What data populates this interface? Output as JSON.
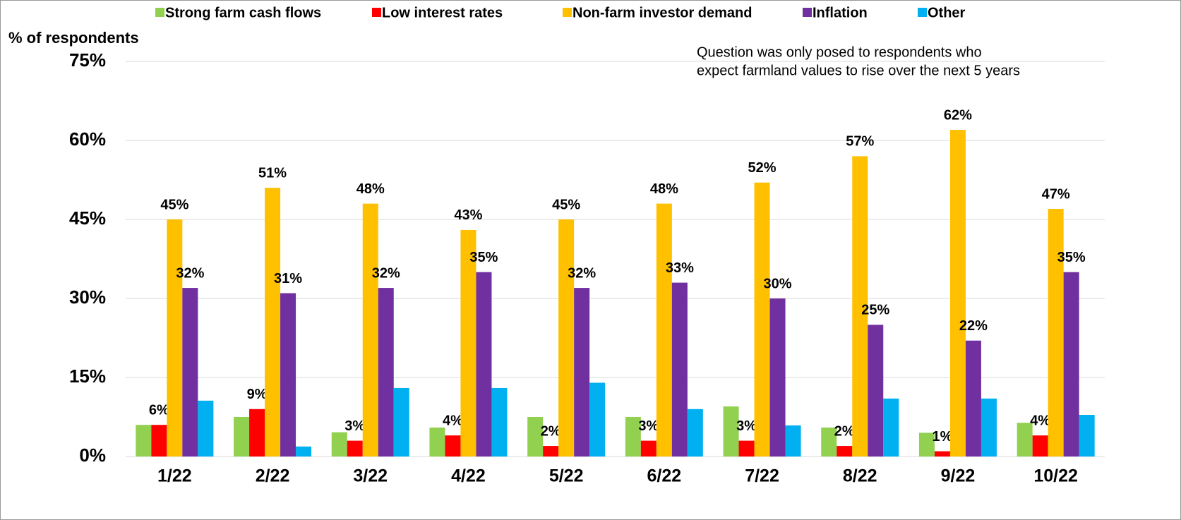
{
  "chart_data": {
    "type": "bar",
    "y_label": "% of respondents",
    "annotation": [
      "Question was only posed to respondents who",
      "expect farmland values to rise over the next 5 years"
    ],
    "categories": [
      "1/22",
      "2/22",
      "3/22",
      "4/22",
      "5/22",
      "6/22",
      "7/22",
      "8/22",
      "9/22",
      "10/22"
    ],
    "series": [
      {
        "name": "Strong farm cash flows",
        "color": "#92d050",
        "values": [
          6,
          7.5,
          4.6,
          5.5,
          7.5,
          7.5,
          9.5,
          5.5,
          4.5,
          6.4
        ]
      },
      {
        "name": "Low interest rates",
        "color": "#ff0000",
        "values": [
          6,
          9,
          3,
          4,
          2,
          3,
          3,
          2,
          1,
          4
        ],
        "value_labels": [
          "6%",
          "9%",
          "3%",
          "4%",
          "2%",
          "3%",
          "3%",
          "2%",
          "1%",
          "4%"
        ]
      },
      {
        "name": "Non-farm investor demand",
        "color": "#ffc000",
        "values": [
          45,
          51,
          48,
          43,
          45,
          48,
          52,
          57,
          62,
          47
        ],
        "value_labels": [
          "45%",
          "51%",
          "48%",
          "43%",
          "45%",
          "48%",
          "52%",
          "57%",
          "62%",
          "47%"
        ]
      },
      {
        "name": "Inflation",
        "color": "#7030a0",
        "values": [
          32,
          31,
          32,
          35,
          32,
          33,
          30,
          25,
          22,
          35
        ],
        "value_labels": [
          "32%",
          "31%",
          "32%",
          "35%",
          "32%",
          "33%",
          "30%",
          "25%",
          "22%",
          "35%"
        ]
      },
      {
        "name": "Other",
        "color": "#00b0f0",
        "values": [
          10.6,
          1.9,
          13,
          13,
          14,
          9,
          5.9,
          11,
          11,
          7.9
        ]
      }
    ],
    "ylim": [
      0,
      75
    ],
    "yticks": [
      {
        "value": 0,
        "label": "0%"
      },
      {
        "value": 15,
        "label": "15%"
      },
      {
        "value": 30,
        "label": "30%"
      },
      {
        "value": 45,
        "label": "45%"
      },
      {
        "value": 60,
        "label": "60%"
      },
      {
        "value": 75,
        "label": "75%"
      }
    ],
    "grid": true
  }
}
